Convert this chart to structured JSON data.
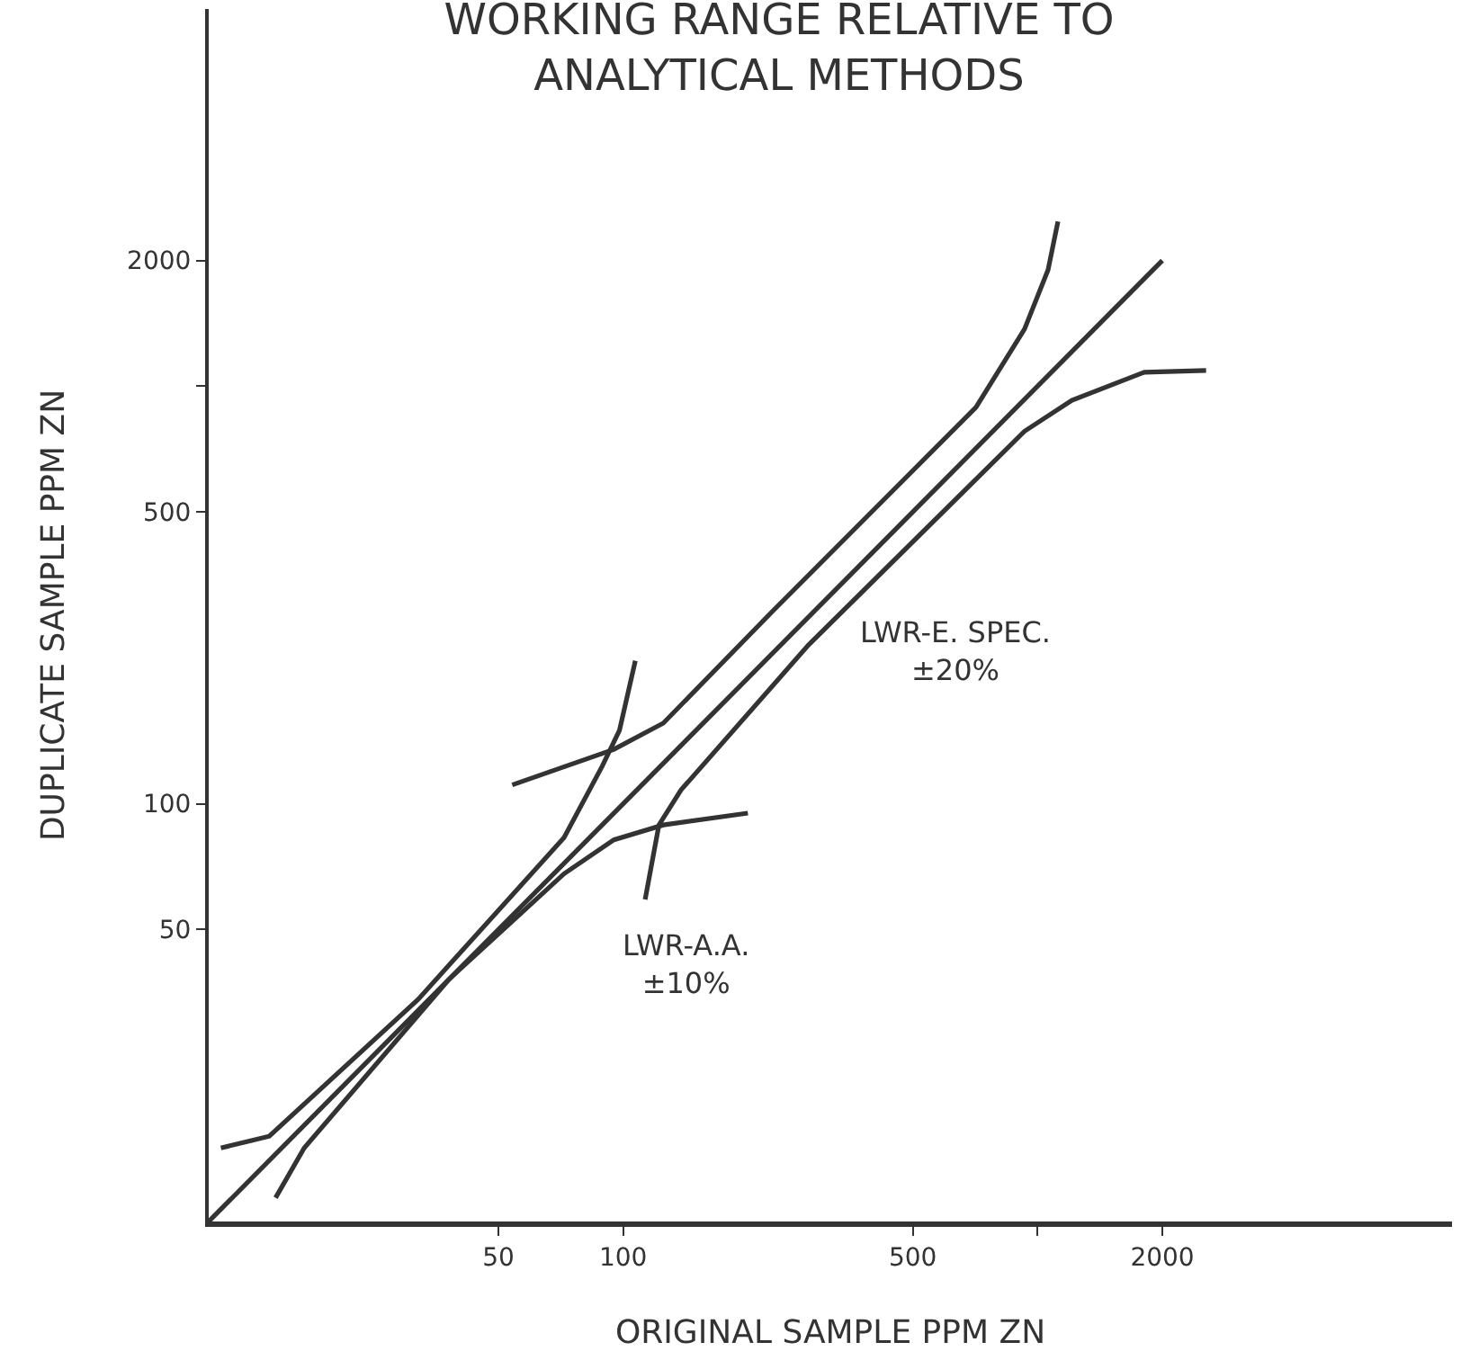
{
  "chart_data": {
    "type": "line",
    "title": "WORKING RANGE RELATIVE TO\nANALYTICAL METHODS",
    "xlabel": "ORIGINAL SAMPLE PPM ZN",
    "ylabel": "DUPLICATE SAMPLE PPM ZN",
    "log": "xy",
    "marker": "none",
    "line_style": "solid",
    "xlim": [
      10,
      10000
    ],
    "ylim": [
      10,
      8000
    ],
    "xticks": [
      50,
      100,
      500,
      {
        "value": 1000,
        "label": null
      },
      2000
    ],
    "yticks": [
      50,
      100,
      500,
      {
        "value": 1000,
        "label": null
      },
      2000
    ],
    "series": [
      {
        "color": "#333333",
        "x": [
          10,
          2000
        ],
        "values": [
          10,
          2000
        ]
      },
      {
        "color": "#333333",
        "x": [
          10.7,
          14,
          32,
          72,
          89,
          98,
          107
        ],
        "values": [
          15,
          16,
          34,
          83,
          123,
          150,
          220
        ]
      },
      {
        "color": "#333333",
        "x": [
          14.5,
          17,
          38,
          72,
          95,
          125,
          200
        ],
        "values": [
          11.4,
          15,
          38,
          68,
          82,
          89,
          95
        ]
      },
      {
        "color": "#333333",
        "x": [
          54,
          95,
          125,
          230,
          710,
          930,
          1060,
          1120
        ],
        "values": [
          111,
          135,
          156,
          290,
          890,
          1370,
          1900,
          2480
        ]
      },
      {
        "color": "#333333",
        "x": [
          113,
          122,
          138,
          280,
          930,
          1210,
          1810,
          2550
        ],
        "values": [
          59,
          89,
          108,
          240,
          780,
          925,
          1080,
          1090
        ]
      }
    ],
    "annotations": [
      "LWR-A.A.\n±10%",
      "LWR-E. SPEC.\n±20%"
    ]
  }
}
